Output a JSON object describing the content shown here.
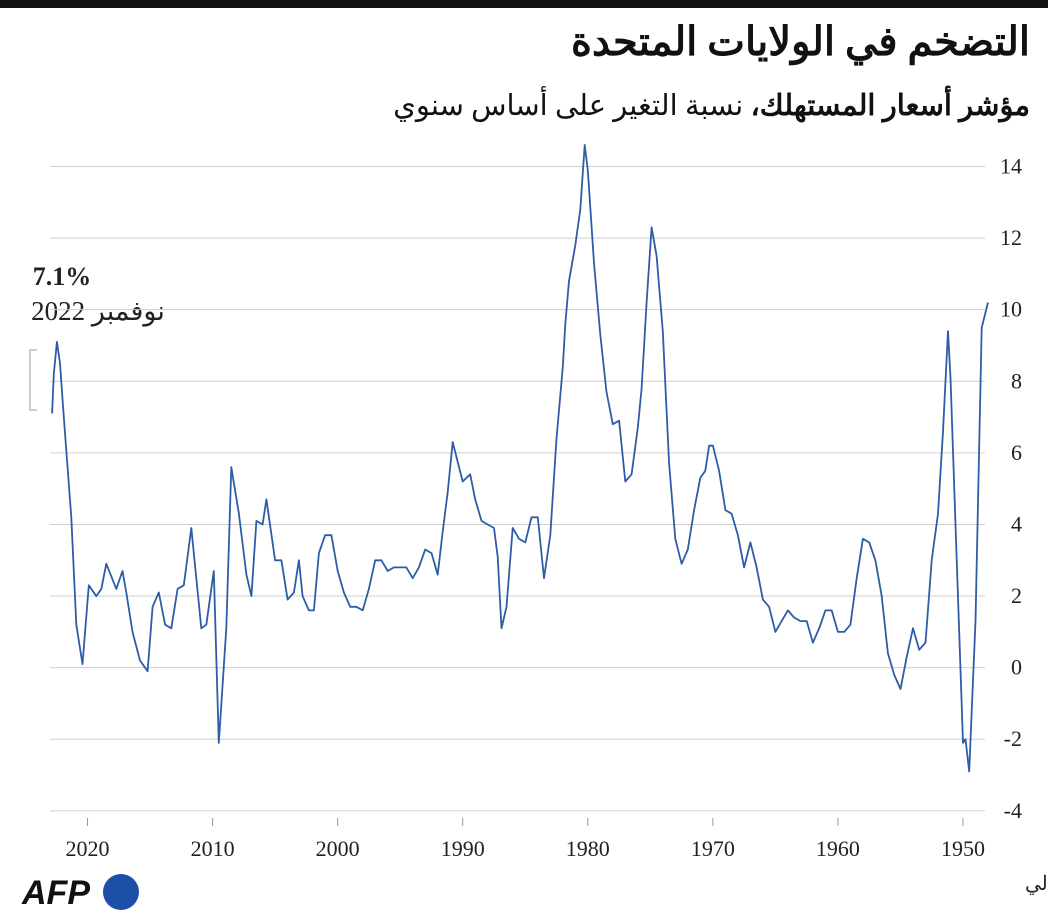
{
  "chart_data": {
    "type": "line",
    "title": "التضخم في الولايات المتحدة",
    "subtitle_bold": "مؤشر أسعار المستهلك،",
    "subtitle": "نسبة التغير على أساس سنوي",
    "annotation": {
      "value_label": "7.1%",
      "date": "نوفمبر 2022"
    },
    "source": "المصدر: بنك الاحتياطي الفدرالي",
    "logo": "AFP",
    "color": "#2e5ca6",
    "grid": true,
    "x_reversed": true,
    "xlim": [
      1948,
      2023
    ],
    "xticks": [
      1950,
      1960,
      1970,
      1980,
      1990,
      2000,
      2010,
      2020
    ],
    "ylim": [
      -4.2,
      14.6
    ],
    "yticks": [
      -4,
      -2,
      0,
      2,
      4,
      6,
      8,
      10,
      12,
      14
    ],
    "x": [
      1948.0,
      1948.5,
      1949.0,
      1949.5,
      1949.8,
      1950.0,
      1950.3,
      1950.6,
      1951.0,
      1951.2,
      1951.6,
      1952.0,
      1952.5,
      1953.0,
      1953.5,
      1954.0,
      1954.5,
      1955.0,
      1955.5,
      1956.0,
      1956.5,
      1957.0,
      1957.5,
      1958.0,
      1958.5,
      1959.0,
      1959.5,
      1960.0,
      1960.5,
      1961.0,
      1961.5,
      1962.0,
      1962.5,
      1963.0,
      1963.5,
      1964.0,
      1964.5,
      1965.0,
      1965.5,
      1966.0,
      1966.5,
      1967.0,
      1967.5,
      1968.0,
      1968.5,
      1969.0,
      1969.5,
      1970.0,
      1970.3,
      1970.6,
      1971.0,
      1971.5,
      1972.0,
      1972.5,
      1973.0,
      1973.5,
      1974.0,
      1974.5,
      1974.9,
      1975.3,
      1975.7,
      1976.0,
      1976.5,
      1977.0,
      1977.5,
      1978.0,
      1978.5,
      1979.0,
      1979.5,
      1980.0,
      1980.25,
      1980.6,
      1981.0,
      1981.5,
      1981.8,
      1982.0,
      1982.5,
      1983.0,
      1983.5,
      1984.0,
      1984.5,
      1985.0,
      1985.5,
      1986.0,
      1986.5,
      1986.9,
      1987.2,
      1987.5,
      1988.0,
      1988.5,
      1989.0,
      1989.4,
      1990.0,
      1990.8,
      1991.2,
      1991.6,
      1992.0,
      1992.5,
      1993.0,
      1993.5,
      1994.0,
      1994.5,
      1995.0,
      1995.5,
      1996.0,
      1996.5,
      1997.0,
      1997.5,
      1998.0,
      1998.5,
      1999.0,
      1999.5,
      2000.0,
      2000.5,
      2001.0,
      2001.5,
      2001.9,
      2002.3,
      2002.8,
      2003.1,
      2003.5,
      2004.0,
      2004.5,
      2005.0,
      2005.7,
      2006.0,
      2006.5,
      2006.9,
      2007.3,
      2007.9,
      2008.5,
      2008.9,
      2009.5,
      2009.9,
      2010.5,
      2010.9,
      2011.7,
      2012.3,
      2012.8,
      2013.3,
      2013.8,
      2014.3,
      2014.8,
      2015.2,
      2015.8,
      2016.4,
      2016.9,
      2017.2,
      2017.7,
      2018.5,
      2018.9,
      2019.3,
      2019.9,
      2020.4,
      2020.9,
      2021.3,
      2021.9,
      2022.2,
      2022.45,
      2022.7,
      2022.83
    ],
    "values": [
      10.2,
      9.5,
      1.3,
      -2.9,
      -2.0,
      -2.1,
      1.0,
      4.0,
      8.1,
      9.4,
      6.6,
      4.3,
      3.0,
      0.7,
      0.5,
      1.1,
      0.3,
      -0.6,
      -0.2,
      0.4,
      2.0,
      3.0,
      3.5,
      3.6,
      2.5,
      1.2,
      1.0,
      1.0,
      1.6,
      1.6,
      1.1,
      0.7,
      1.3,
      1.3,
      1.4,
      1.6,
      1.3,
      1.0,
      1.7,
      1.9,
      2.8,
      3.5,
      2.8,
      3.7,
      4.3,
      4.4,
      5.5,
      6.2,
      6.2,
      5.5,
      5.3,
      4.4,
      3.3,
      2.9,
      3.6,
      5.7,
      9.4,
      11.5,
      12.3,
      10.2,
      7.8,
      6.7,
      5.4,
      5.2,
      6.9,
      6.8,
      7.7,
      9.3,
      11.3,
      13.9,
      14.6,
      12.8,
      11.8,
      10.8,
      9.6,
      8.4,
      6.4,
      3.7,
      2.5,
      4.2,
      4.2,
      3.5,
      3.6,
      3.9,
      1.7,
      1.1,
      3.1,
      3.9,
      4.0,
      4.1,
      4.7,
      5.4,
      5.2,
      6.3,
      4.9,
      3.8,
      2.6,
      3.2,
      3.3,
      2.8,
      2.5,
      2.8,
      2.8,
      2.8,
      2.7,
      3.0,
      3.0,
      2.2,
      1.6,
      1.7,
      1.7,
      2.1,
      2.7,
      3.7,
      3.7,
      3.2,
      1.6,
      1.6,
      2.0,
      3.0,
      2.1,
      1.9,
      3.0,
      3.0,
      4.7,
      4.0,
      4.1,
      2.0,
      2.6,
      4.3,
      5.6,
      1.1,
      -2.1,
      2.7,
      1.2,
      1.1,
      3.9,
      2.3,
      2.2,
      1.1,
      1.2,
      2.1,
      1.7,
      -0.1,
      0.2,
      1.0,
      2.1,
      2.7,
      2.2,
      2.9,
      2.2,
      2.0,
      2.3,
      0.1,
      1.2,
      4.2,
      7.0,
      8.5,
      9.1,
      8.2,
      7.1
    ]
  }
}
